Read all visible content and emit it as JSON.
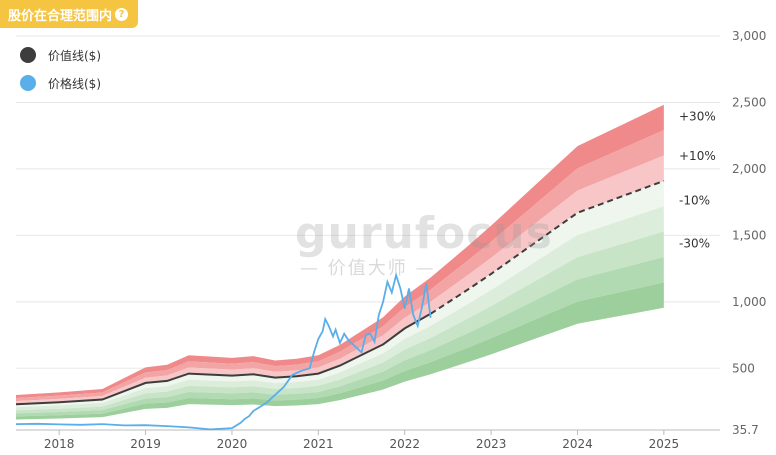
{
  "header": {
    "badge_label": "股价在合理范围内",
    "help_icon": "?"
  },
  "watermark": {
    "brand": "gurufocus",
    "subtitle": "— 价值大师 —"
  },
  "legend": [
    {
      "label": "价值线($)",
      "color": "#3d3d3d"
    },
    {
      "label": "价格线($)",
      "color": "#5aaeea"
    }
  ],
  "band_labels": [
    "+30%",
    "+10%",
    "-10%",
    "-30%"
  ],
  "chart_data": {
    "type": "area",
    "title": "",
    "xlabel": "",
    "ylabel": "",
    "x_ticks": [
      "2018",
      "2019",
      "2020",
      "2021",
      "2022",
      "2023",
      "2024",
      "2025"
    ],
    "y_ticks": [
      "35.7",
      "500",
      "1,000",
      "1,500",
      "2,000",
      "2,500",
      "3,000"
    ],
    "ylim": [
      35.7,
      3000
    ],
    "xlim": [
      2017.5,
      2025.65
    ],
    "value_line": {
      "name": "价值线($)",
      "color": "#3d3d3d",
      "points": [
        [
          2017.5,
          230
        ],
        [
          2018.0,
          245
        ],
        [
          2018.5,
          265
        ],
        [
          2019.0,
          390
        ],
        [
          2019.25,
          405
        ],
        [
          2019.5,
          460
        ],
        [
          2020.0,
          445
        ],
        [
          2020.25,
          455
        ],
        [
          2020.5,
          430
        ],
        [
          2020.75,
          440
        ],
        [
          2021.0,
          460
        ],
        [
          2021.25,
          520
        ],
        [
          2021.75,
          680
        ],
        [
          2022.0,
          800
        ],
        [
          2022.3,
          910
        ]
      ],
      "projection": [
        [
          2022.3,
          910
        ],
        [
          2022.75,
          1100
        ],
        [
          2023.0,
          1210
        ],
        [
          2023.5,
          1440
        ],
        [
          2024.0,
          1670
        ],
        [
          2024.5,
          1790
        ],
        [
          2025.0,
          1910
        ]
      ],
      "projection_style": "dashed"
    },
    "price_line": {
      "name": "价格线($)",
      "color": "#5aaeea",
      "points": [
        [
          2017.5,
          80
        ],
        [
          2017.75,
          82
        ],
        [
          2018.0,
          78
        ],
        [
          2018.25,
          75
        ],
        [
          2018.5,
          80
        ],
        [
          2018.75,
          70
        ],
        [
          2019.0,
          72
        ],
        [
          2019.25,
          65
        ],
        [
          2019.5,
          55
        ],
        [
          2019.75,
          40
        ],
        [
          2020.0,
          50
        ],
        [
          2020.1,
          90
        ],
        [
          2020.15,
          120
        ],
        [
          2020.2,
          140
        ],
        [
          2020.25,
          180
        ],
        [
          2020.3,
          200
        ],
        [
          2020.4,
          240
        ],
        [
          2020.5,
          300
        ],
        [
          2020.6,
          360
        ],
        [
          2020.7,
          450
        ],
        [
          2020.8,
          480
        ],
        [
          2020.9,
          500
        ],
        [
          2020.95,
          620
        ],
        [
          2021.0,
          720
        ],
        [
          2021.05,
          780
        ],
        [
          2021.08,
          870
        ],
        [
          2021.12,
          820
        ],
        [
          2021.17,
          740
        ],
        [
          2021.2,
          790
        ],
        [
          2021.25,
          690
        ],
        [
          2021.3,
          760
        ],
        [
          2021.35,
          710
        ],
        [
          2021.4,
          680
        ],
        [
          2021.5,
          620
        ],
        [
          2021.55,
          750
        ],
        [
          2021.6,
          760
        ],
        [
          2021.65,
          700
        ],
        [
          2021.7,
          900
        ],
        [
          2021.75,
          1000
        ],
        [
          2021.8,
          1150
        ],
        [
          2021.85,
          1070
        ],
        [
          2021.9,
          1200
        ],
        [
          2021.95,
          1100
        ],
        [
          2022.0,
          950
        ],
        [
          2022.05,
          1100
        ],
        [
          2022.1,
          900
        ],
        [
          2022.15,
          820
        ],
        [
          2022.2,
          960
        ],
        [
          2022.25,
          1140
        ],
        [
          2022.3,
          880
        ]
      ]
    },
    "bands": {
      "upper_multipliers": [
        1.3,
        1.2,
        1.1,
        1.0
      ],
      "lower_multipliers": [
        1.0,
        0.9,
        0.8,
        0.7,
        0.6,
        0.5
      ],
      "upper_colors": [
        "#f08a8a",
        "#f3a5a5",
        "#f8c6c6",
        "#fbe1e1"
      ],
      "lower_colors": [
        "#eef6ee",
        "#dceddc",
        "#c7e4c7",
        "#b2dab2",
        "#9ccf9c"
      ]
    },
    "grid": true,
    "legend_position": "top-left"
  }
}
